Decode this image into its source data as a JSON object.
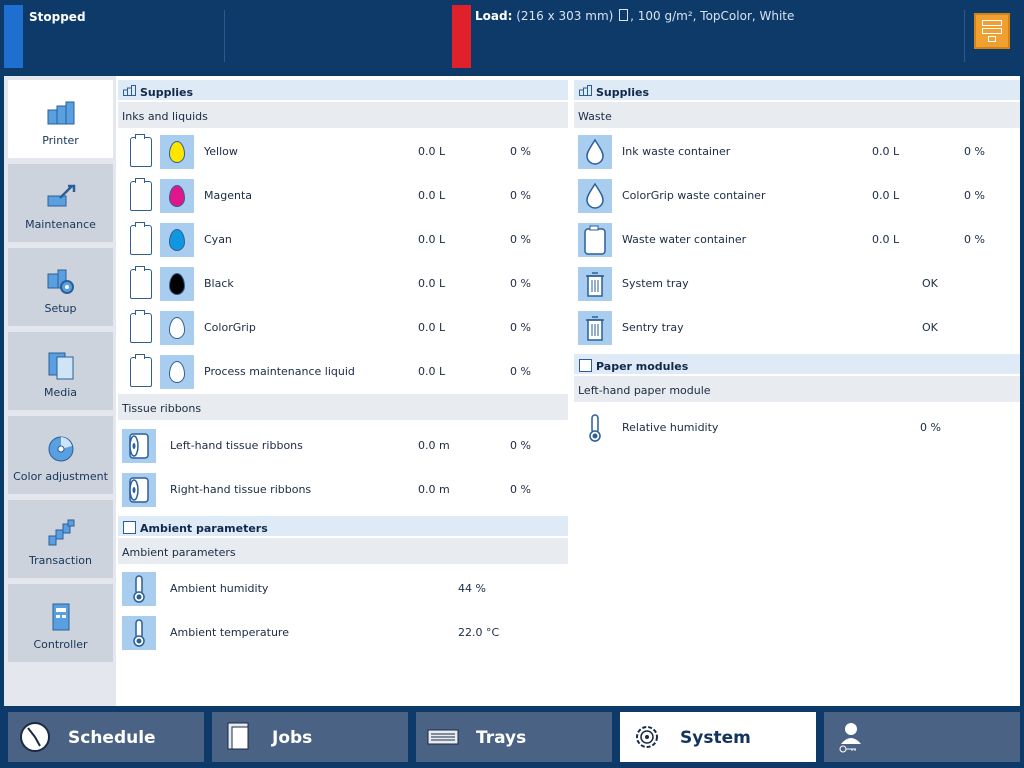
{
  "status": {
    "text": "Stopped"
  },
  "load": {
    "label": "Load:",
    "size": "(216 x 303 mm)",
    "details": ", 100 g/m², TopColor, White"
  },
  "sidebar": {
    "items": [
      {
        "label": "Printer",
        "icon": "printer-icon"
      },
      {
        "label": "Maintenance",
        "icon": "maintenance-icon"
      },
      {
        "label": "Setup",
        "icon": "setup-icon"
      },
      {
        "label": "Media",
        "icon": "media-icon"
      },
      {
        "label": "Color adjustment",
        "icon": "color-adjustment-icon"
      },
      {
        "label": "Transaction",
        "icon": "transaction-icon"
      },
      {
        "label": "Controller",
        "icon": "controller-icon"
      }
    ]
  },
  "left": {
    "supplies_title": "Supplies",
    "inks_header": "Inks and liquids",
    "inks": [
      {
        "name": "Yellow",
        "amount": "0.0 L",
        "percent": "0 %",
        "color": "#ffe600"
      },
      {
        "name": "Magenta",
        "amount": "0.0 L",
        "percent": "0 %",
        "color": "#e0168c"
      },
      {
        "name": "Cyan",
        "amount": "0.0 L",
        "percent": "0 %",
        "color": "#1196e0"
      },
      {
        "name": "Black",
        "amount": "0.0 L",
        "percent": "0 %",
        "color": "#000000"
      },
      {
        "name": "ColorGrip",
        "amount": "0.0 L",
        "percent": "0 %",
        "color": "#ffffff"
      },
      {
        "name": "Process maintenance liquid",
        "amount": "0.0 L",
        "percent": "0 %",
        "color": "#ffffff"
      }
    ],
    "tissue_header": "Tissue ribbons",
    "tissue": [
      {
        "name": "Left-hand tissue ribbons",
        "amount": "0.0 m",
        "percent": "0 %"
      },
      {
        "name": "Right-hand tissue ribbons",
        "amount": "0.0 m",
        "percent": "0 %"
      }
    ],
    "ambient_title": "Ambient parameters",
    "ambient_header": "Ambient parameters",
    "ambient": [
      {
        "name": "Ambient humidity",
        "value": "44 %"
      },
      {
        "name": "Ambient temperature",
        "value": "22.0 °C"
      }
    ]
  },
  "right": {
    "supplies_title": "Supplies",
    "waste_header": "Waste",
    "waste": [
      {
        "name": "Ink waste container",
        "amount": "0.0 L",
        "percent": "0 %"
      },
      {
        "name": "ColorGrip waste container",
        "amount": "0.0 L",
        "percent": "0 %"
      },
      {
        "name": "Waste water container",
        "amount": "0.0 L",
        "percent": "0 %"
      },
      {
        "name": "System tray",
        "amount": "",
        "percent": "OK"
      },
      {
        "name": "Sentry tray",
        "amount": "",
        "percent": "OK"
      }
    ],
    "paper_title": "Paper modules",
    "paper_header": "Left-hand paper module",
    "paper": [
      {
        "name": "Relative humidity",
        "value": "0 %"
      }
    ]
  },
  "bottomnav": {
    "items": [
      {
        "label": "Schedule",
        "icon": "clock-icon"
      },
      {
        "label": "Jobs",
        "icon": "jobs-icon"
      },
      {
        "label": "Trays",
        "icon": "trays-icon"
      },
      {
        "label": "System",
        "icon": "gear-icon"
      },
      {
        "label": "",
        "icon": "user-key-icon"
      }
    ]
  },
  "colors": {
    "topbar": "#0d3a68",
    "accent_blue": "#1e6fd0",
    "accent_red": "#e0202a",
    "icon_bg": "#a9cdef",
    "server_button": "#f0a030"
  }
}
